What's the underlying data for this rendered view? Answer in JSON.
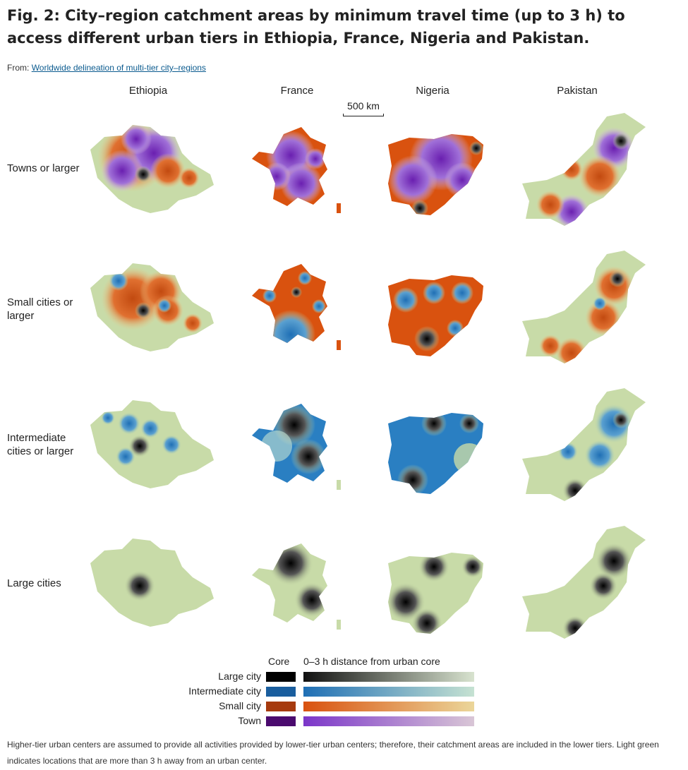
{
  "figure": {
    "title": "Fig. 2: City–region catchment areas by minimum travel time (up to 3 h) to access different urban tiers in Ethiopia, France, Nigeria and Pakistan.",
    "from_prefix": "From:",
    "from_link": "Worldwide delineation of multi-tier city–regions"
  },
  "columns": [
    "Ethiopia",
    "France",
    "Nigeria",
    "Pakistan"
  ],
  "rows": [
    "Towns or larger",
    "Small cities or larger",
    "Intermediate cities or larger",
    "Large cities"
  ],
  "scale_bar": "500 km",
  "legend": {
    "core_header": "Core",
    "gradient_header": "0–3 h distance from urban core",
    "items": [
      {
        "label": "Large city",
        "core": "#000000",
        "from": "#111111",
        "to": "#d8e3cf"
      },
      {
        "label": "Intermediate city",
        "core": "#1a5e9e",
        "from": "#1f6fb5",
        "to": "#c6e2d2"
      },
      {
        "label": "Small city",
        "core": "#a63a0e",
        "from": "#d9520f",
        "to": "#ebd69a"
      },
      {
        "label": "Town",
        "core": "#4a0a6e",
        "from": "#7b36c9",
        "to": "#d9c6d6"
      }
    ]
  },
  "colors": {
    "background_land": "#c8dba8",
    "large": "#111111",
    "intermediate": "#2a7fc2",
    "small": "#e0621a",
    "town": "#9b55d6"
  },
  "footnote": "Higher-tier urban centers are assumed to provide all activities provided by lower-tier urban centers; therefore, their catchment areas are included in the lower tiers. Light green indicates locations that are more than 3 h away from an urban center."
}
